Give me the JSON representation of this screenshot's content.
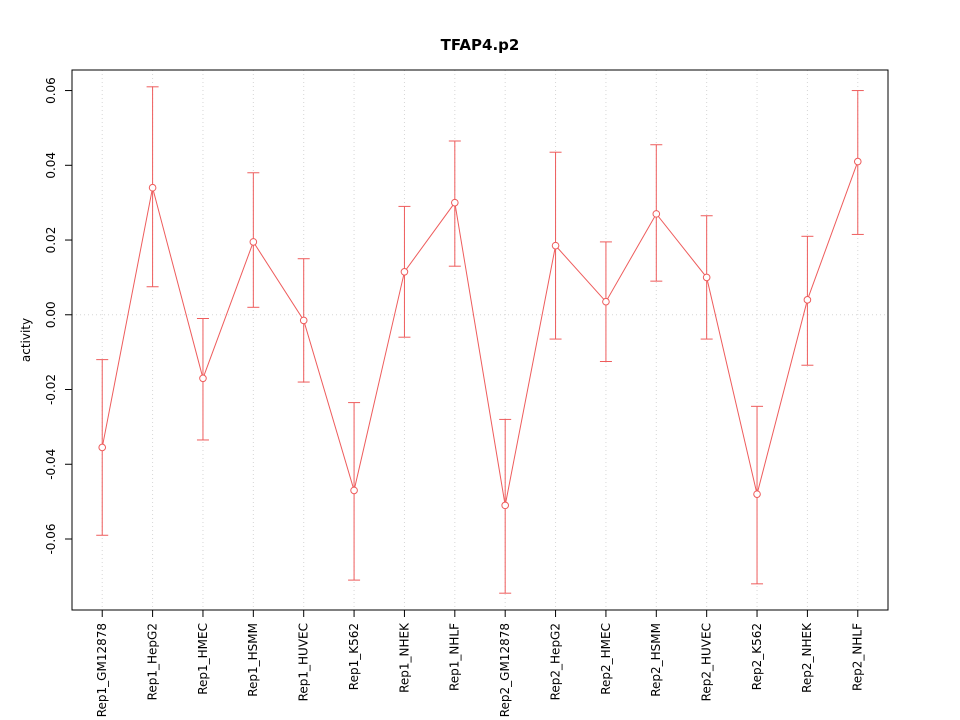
{
  "chart_data": {
    "type": "line",
    "title": "TFAP4.p2",
    "ylabel": "activity",
    "xlabel": "",
    "marker": "open-circle",
    "error_bars": true,
    "legend": "none",
    "grid": "dotted vertical gridline at each category and dotted horizontal line at y=0",
    "categories": [
      "Rep1_GM12878",
      "Rep1_HepG2",
      "Rep1_HMEC",
      "Rep1_HSMM",
      "Rep1_HUVEC",
      "Rep1_K562",
      "Rep1_NHEK",
      "Rep1_NHLF",
      "Rep2_GM12878",
      "Rep2_HepG2",
      "Rep2_HMEC",
      "Rep2_HSMM",
      "Rep2_HUVEC",
      "Rep2_K562",
      "Rep2_NHEK",
      "Rep2_NHLF"
    ],
    "values": [
      -0.0355,
      0.034,
      -0.017,
      0.0195,
      -0.0015,
      -0.047,
      0.0115,
      0.03,
      -0.051,
      0.0185,
      0.0035,
      0.027,
      0.01,
      -0.048,
      0.004,
      0.041
    ],
    "lower": [
      -0.059,
      0.0075,
      -0.0335,
      0.002,
      -0.018,
      -0.071,
      -0.006,
      0.013,
      -0.0745,
      -0.0065,
      -0.0125,
      0.009,
      -0.0065,
      -0.072,
      -0.0135,
      0.0215
    ],
    "upper": [
      -0.012,
      0.061,
      -0.001,
      0.038,
      0.015,
      -0.0235,
      0.029,
      0.0465,
      -0.028,
      0.0435,
      0.0195,
      0.0455,
      0.0265,
      -0.0245,
      0.021,
      0.06
    ],
    "yticks": [
      -0.06,
      -0.04,
      -0.02,
      0.0,
      0.02,
      0.04,
      0.06
    ],
    "ytick_labels": [
      "-0.06",
      "-0.04",
      "-0.02",
      "0.00",
      "0.02",
      "0.04",
      "0.06"
    ],
    "ylim": [
      -0.079,
      0.0655
    ],
    "colors": {
      "line": "#ee5c5c",
      "grid": "#d6d6d6",
      "axis": "#000000",
      "text": "#000000",
      "background": "#ffffff"
    }
  }
}
